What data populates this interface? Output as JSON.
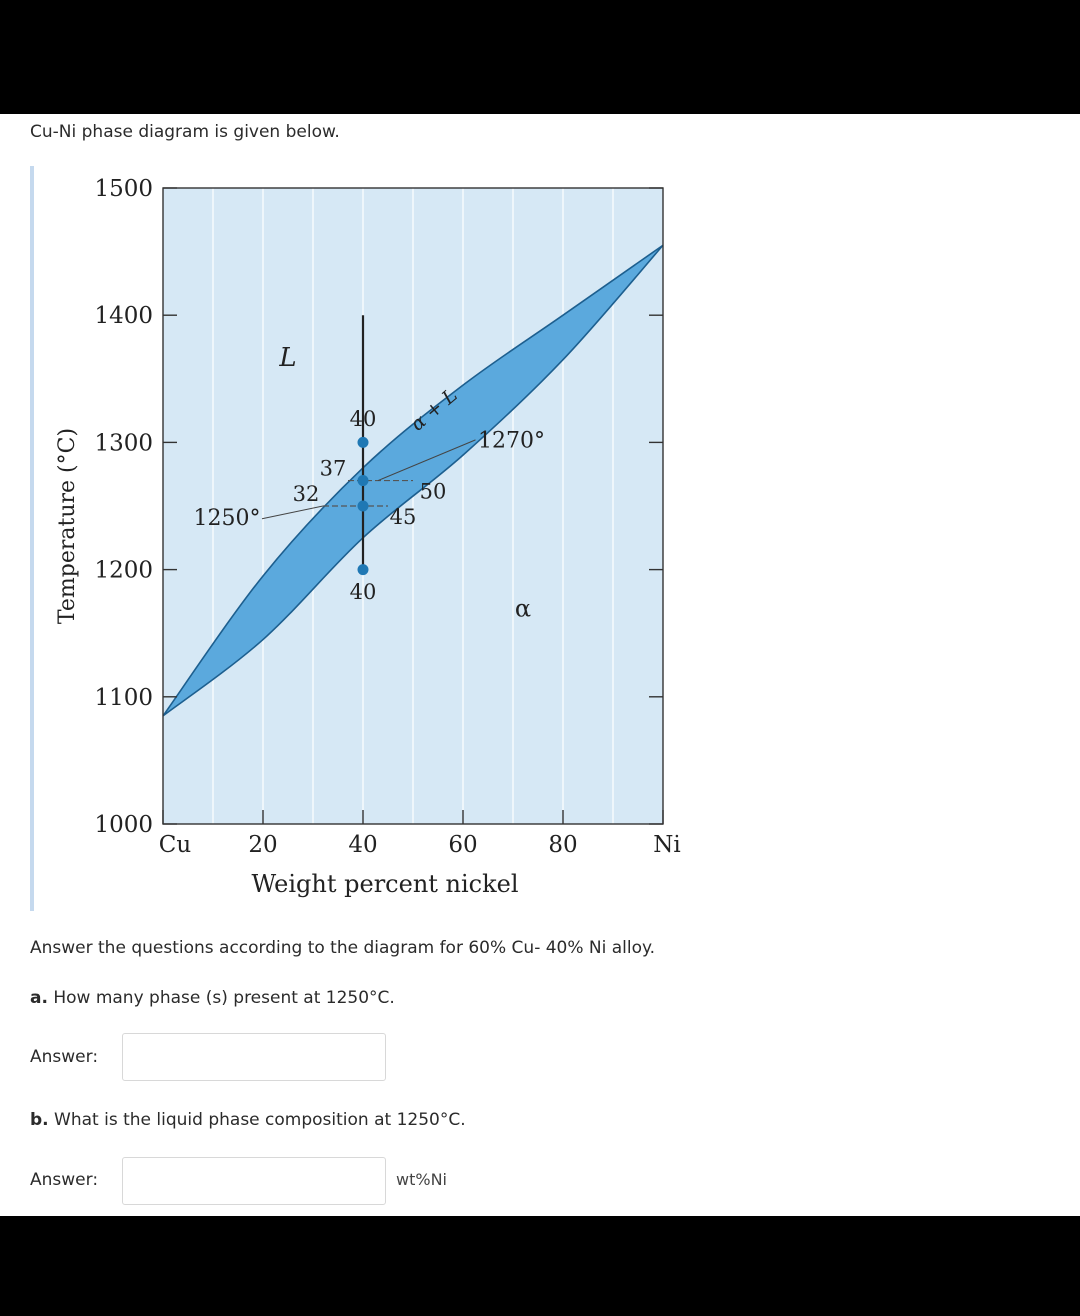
{
  "intro": "Cu-Ni phase diagram is given below.",
  "figure": {
    "ylabel": "Temperature (°C)",
    "xlabel": "Weight percent nickel",
    "y_ticks": [
      "1500",
      "1400",
      "1300",
      "1200",
      "1100",
      "1000"
    ],
    "x_ticks": [
      "Cu",
      "20",
      "40",
      "60",
      "80",
      "Ni"
    ],
    "region_labels": {
      "liquid": "L",
      "two_phase": "α + L",
      "solid": "α"
    },
    "annotations": {
      "t1250": "1250°",
      "t1270": "1270°",
      "c32": "32",
      "c37": "37",
      "c40_top": "40",
      "c40_bottom": "40",
      "c45": "45",
      "c50": "50"
    },
    "colors": {
      "background": "#d6e8f5",
      "two_phase": "#5ba9dd",
      "marker": "#1f78b4"
    }
  },
  "chart_data": {
    "type": "area",
    "xlabel": "Weight percent nickel",
    "ylabel": "Temperature (°C)",
    "xlim": [
      0,
      100
    ],
    "ylim": [
      1000,
      1500
    ],
    "series": [
      {
        "name": "liquidus",
        "x": [
          0,
          20,
          40,
          60,
          80,
          100
        ],
        "y": [
          1085,
          1195,
          1280,
          1345,
          1400,
          1455
        ]
      },
      {
        "name": "solidus",
        "x": [
          0,
          20,
          40,
          60,
          80,
          100
        ],
        "y": [
          1085,
          1145,
          1225,
          1290,
          1365,
          1455
        ]
      }
    ],
    "tie_lines": [
      {
        "temperature": 1250,
        "x_liquid": 32,
        "x_solid": 45
      },
      {
        "temperature": 1270,
        "x_liquid": 37,
        "x_solid": 50
      }
    ],
    "alloy_line": {
      "x": 40,
      "y_from": 1200,
      "y_to": 1400
    },
    "markers": [
      {
        "x": 40,
        "y": 1300
      },
      {
        "x": 40,
        "y": 1270
      },
      {
        "x": 40,
        "y": 1250
      },
      {
        "x": 40,
        "y": 1200
      }
    ]
  },
  "instruction": "Answer the questions according to the diagram for 60% Cu- 40% Ni alloy.",
  "question_a": {
    "prefix": "a.",
    "text": " How many phase (s) present at 1250°C."
  },
  "question_b": {
    "prefix": "b.",
    "text": " What is the liquid phase composition at 1250°C."
  },
  "answer_label": "Answer:",
  "answer_a_value": "",
  "answer_b_value": "",
  "unit_b": "wt%Ni"
}
